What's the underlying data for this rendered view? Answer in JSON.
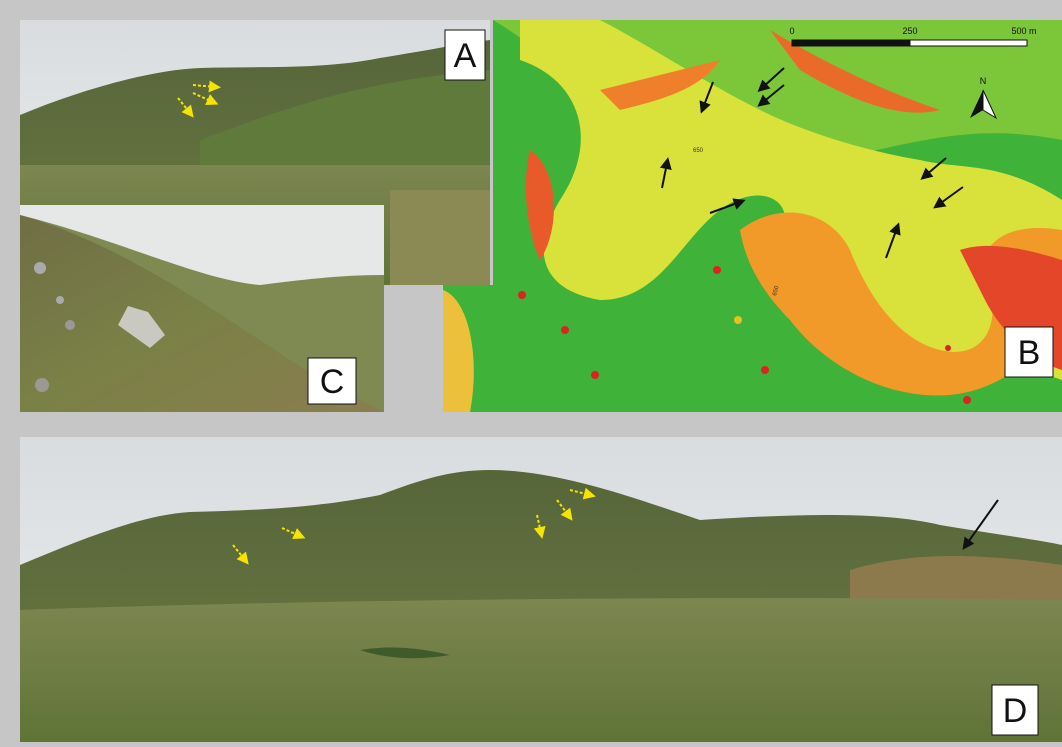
{
  "panels": [
    {
      "label": "A"
    },
    {
      "label": "B",
      "scale_bar": [
        "0",
        "250",
        "500 m"
      ],
      "north": "N",
      "contour_labels": [
        "650",
        "650"
      ]
    },
    {
      "label": "C"
    },
    {
      "label": "D"
    }
  ]
}
